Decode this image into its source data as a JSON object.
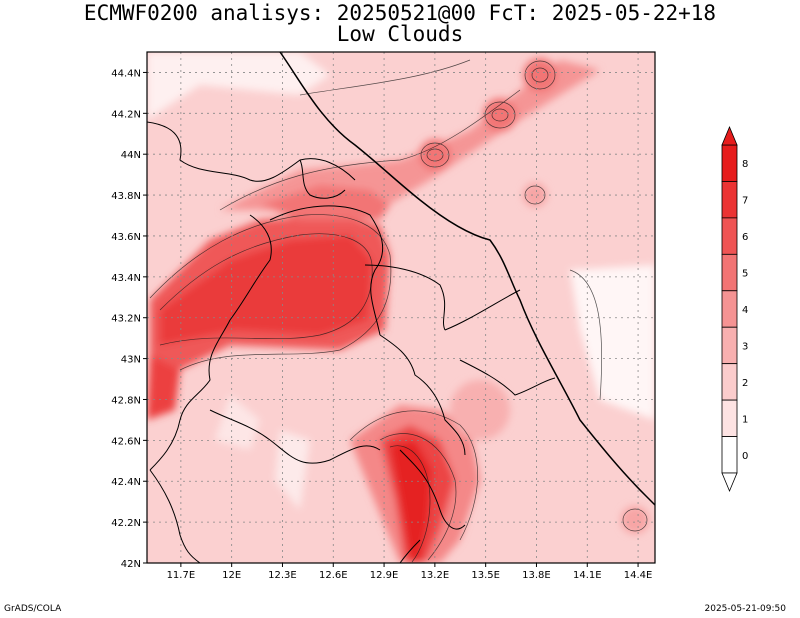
{
  "title_line1": "ECMWF0200 analisys: 20250521@00 FcT: 2025-05-22+18",
  "title_line2": "Low Clouds",
  "footer_left": "GrADS/COLA",
  "footer_right": "2025-05-21-09:50",
  "map": {
    "lon_range": [
      11.5,
      14.5
    ],
    "lat_range": [
      42.0,
      44.5
    ],
    "grid": true,
    "lat_ticks": [
      "42N",
      "42.2N",
      "42.4N",
      "42.6N",
      "42.8N",
      "43N",
      "43.2N",
      "43.4N",
      "43.6N",
      "43.8N",
      "44N",
      "44.2N",
      "44.4N"
    ],
    "lon_ticks": [
      "11.7E",
      "12E",
      "12.3E",
      "12.6E",
      "12.9E",
      "13.2E",
      "13.5E",
      "13.8E",
      "14.1E",
      "14.4E"
    ]
  },
  "colorbar": {
    "labels": [
      "0",
      "1",
      "2",
      "3",
      "4",
      "5",
      "6",
      "7",
      "8"
    ],
    "colors": [
      "#ffffff",
      "#fde3e3",
      "#fbcccc",
      "#f8b0b0",
      "#f59393",
      "#f27474",
      "#ef5454",
      "#eb3434",
      "#e61c1c"
    ]
  }
}
